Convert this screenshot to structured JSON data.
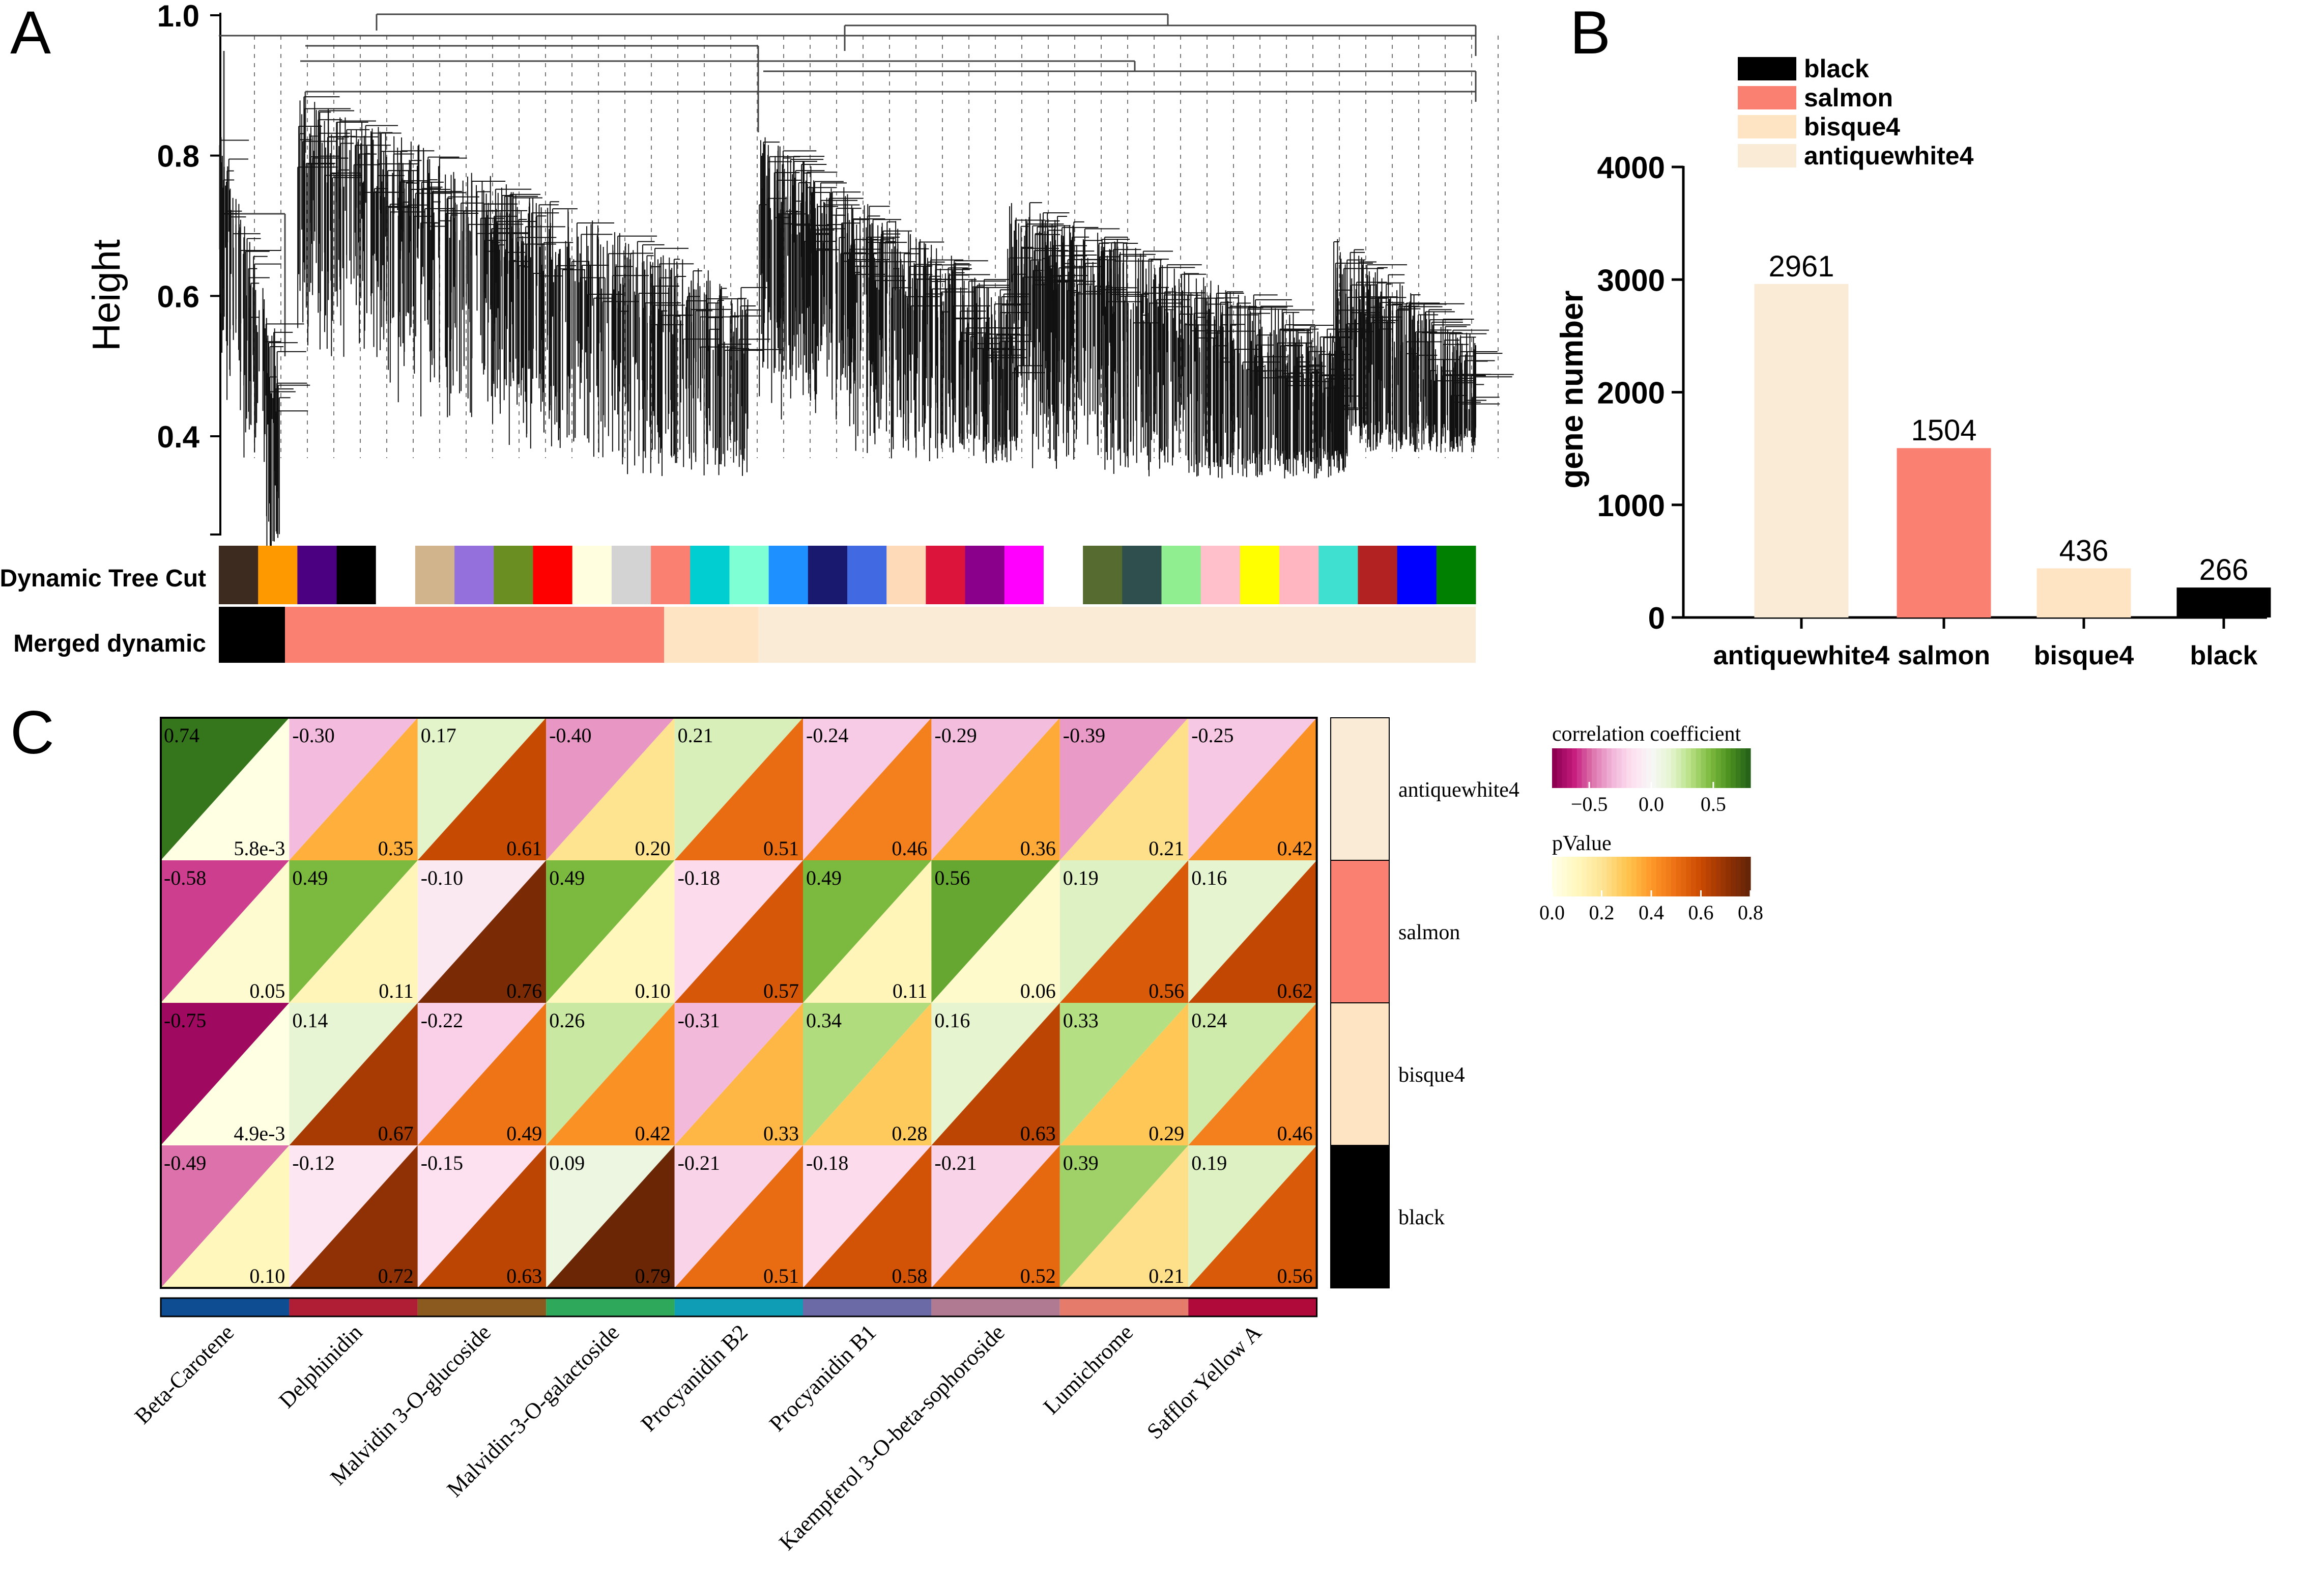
{
  "panels": {
    "a": "A",
    "b": "B",
    "c": "C"
  },
  "chart_data": [
    {
      "type": "dendrogram",
      "panel": "A",
      "ylabel": "Height",
      "yticks": [
        "1.0",
        "0.8",
        "0.6",
        "0.4"
      ],
      "ylim": [
        0.26,
        1.0
      ],
      "color_rows": [
        {
          "label": "Dynamic Tree Cut",
          "colors": [
            "#3d2b1f",
            "#ff9900",
            "#4b0082",
            "#000000",
            "#ffffff",
            "#d2b48c",
            "#9370db",
            "#6b8e23",
            "#ff0000",
            "#ffffe0",
            "#d3d3d3",
            "#fa8072",
            "#00ced1",
            "#7fffd4",
            "#1e90ff",
            "#191970",
            "#4169e1",
            "#ffdab9",
            "#dc143c",
            "#8b008b",
            "#ff00ff",
            "#ffffff",
            "#556b2f",
            "#2f4f4f",
            "#90ee90",
            "#ffc0cb",
            "#ffff00",
            "#ffb6c1",
            "#40e0d0",
            "#b22222",
            "#0000ff",
            "#008000"
          ]
        },
        {
          "label": "Merged dynamic",
          "segments": [
            {
              "color": "#000000",
              "module": "black"
            },
            {
              "color": "#fa8072",
              "module": "salmon"
            },
            {
              "color": "#ffe4c4",
              "module": "bisque4"
            },
            {
              "color": "#faebd7",
              "module": "antiquewhite4"
            }
          ]
        }
      ]
    },
    {
      "type": "bar",
      "panel": "B",
      "ylabel": "gene number",
      "categories": [
        "antiquewhite4",
        "salmon",
        "bisque4",
        "black"
      ],
      "values": [
        2961,
        1504,
        436,
        266
      ],
      "value_labels": [
        "2961",
        "1504",
        "436",
        "266"
      ],
      "colors": [
        "#faebd7",
        "#fa8072",
        "#ffe4c4",
        "#000000"
      ],
      "ylim": [
        0,
        4000
      ],
      "yticks": [
        "0",
        "1000",
        "2000",
        "3000",
        "4000"
      ],
      "legend": {
        "position": "top",
        "entries": [
          {
            "label": "black",
            "color": "#000000"
          },
          {
            "label": "salmon",
            "color": "#fa8072"
          },
          {
            "label": "bisque4",
            "color": "#ffe4c4"
          },
          {
            "label": "antiquewhite4",
            "color": "#faebd7"
          }
        ]
      }
    },
    {
      "type": "heatmap",
      "panel": "C",
      "rows": [
        "antiquewhite4",
        "salmon",
        "bisque4",
        "black"
      ],
      "row_colors": [
        "#faebd7",
        "#fa8072",
        "#ffe4c4",
        "#000000"
      ],
      "columns": [
        "Beta-Carotene",
        "Delphinidin",
        "Malvidin 3-O-glucoside",
        "Malvidin-3-O-galactoside",
        "Procyanidin B2",
        "Procyanidin B1",
        "Kaempferol 3-O-beta-sophoroside",
        "Lumichrome",
        "Safflor Yellow A"
      ],
      "column_colors": [
        "#0e4d92",
        "#b01e35",
        "#8b5a1e",
        "#2ea85a",
        "#0f9db5",
        "#6b6aa6",
        "#b07a92",
        "#e57b6b",
        "#b00a3a"
      ],
      "correlation": [
        [
          0.74,
          -0.3,
          0.17,
          -0.4,
          0.21,
          -0.24,
          -0.29,
          -0.39,
          -0.25
        ],
        [
          -0.58,
          0.49,
          -0.1,
          0.49,
          -0.18,
          0.49,
          0.56,
          0.19,
          0.16
        ],
        [
          -0.75,
          0.14,
          -0.22,
          0.26,
          -0.31,
          0.34,
          0.16,
          0.33,
          0.24
        ],
        [
          -0.49,
          -0.12,
          -0.15,
          0.09,
          -0.21,
          -0.18,
          -0.21,
          0.39,
          0.19
        ]
      ],
      "correlation_labels": [
        [
          "0.74",
          "-0.30",
          "0.17",
          "-0.40",
          "0.21",
          "-0.24",
          "-0.29",
          "-0.39",
          "-0.25"
        ],
        [
          "-0.58",
          "0.49",
          "-0.10",
          "0.49",
          "-0.18",
          "0.49",
          "0.56",
          "0.19",
          "0.16"
        ],
        [
          "-0.75",
          "0.14",
          "-0.22",
          "0.26",
          "-0.31",
          "0.34",
          "0.16",
          "0.33",
          "0.24"
        ],
        [
          "-0.49",
          "-0.12",
          "-0.15",
          "0.09",
          "-0.21",
          "-0.18",
          "-0.21",
          "0.39",
          "0.19"
        ]
      ],
      "pvalue": [
        [
          0.0058,
          0.35,
          0.61,
          0.2,
          0.51,
          0.46,
          0.36,
          0.21,
          0.42
        ],
        [
          0.05,
          0.11,
          0.76,
          0.1,
          0.57,
          0.11,
          0.06,
          0.56,
          0.62
        ],
        [
          0.0049,
          0.67,
          0.49,
          0.42,
          0.33,
          0.28,
          0.63,
          0.29,
          0.46
        ],
        [
          0.1,
          0.72,
          0.63,
          0.79,
          0.51,
          0.58,
          0.52,
          0.21,
          0.56
        ]
      ],
      "pvalue_labels": [
        [
          "5.8e-3",
          "0.35",
          "0.61",
          "0.20",
          "0.51",
          "0.46",
          "0.36",
          "0.21",
          "0.42"
        ],
        [
          "0.05",
          "0.11",
          "0.76",
          "0.10",
          "0.57",
          "0.11",
          "0.06",
          "0.56",
          "0.62"
        ],
        [
          "4.9e-3",
          "0.67",
          "0.49",
          "0.42",
          "0.33",
          "0.28",
          "0.63",
          "0.29",
          "0.46"
        ],
        [
          "0.10",
          "0.72",
          "0.63",
          "0.79",
          "0.51",
          "0.58",
          "0.52",
          "0.21",
          "0.56"
        ]
      ],
      "legend_corr": {
        "title": "correlation coefficient",
        "ticks": [
          "−0.5",
          "0.0",
          "0.5"
        ],
        "tick_values": [
          -0.5,
          0.0,
          0.5
        ],
        "range": [
          -0.8,
          0.8
        ]
      },
      "legend_p": {
        "title": "pValue",
        "ticks": [
          "0.0",
          "0.2",
          "0.4",
          "0.6",
          "0.8"
        ],
        "tick_values": [
          0,
          0.2,
          0.4,
          0.6,
          0.8
        ],
        "range": [
          0,
          0.8
        ]
      }
    }
  ]
}
